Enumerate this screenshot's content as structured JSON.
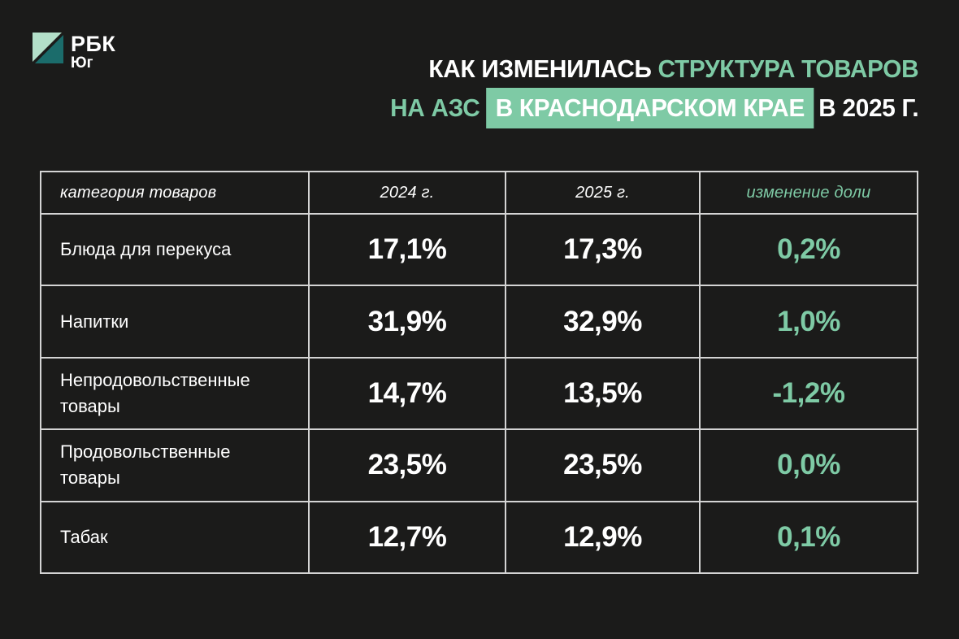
{
  "page": {
    "background": "#1b1b1a",
    "accent": "#7ecaa5",
    "border_color": "#d4d4d4"
  },
  "logo": {
    "brand": "РБК",
    "region": "Юг",
    "mark_light_color": "#b3dfc9",
    "mark_dark_color": "#1b6c6b"
  },
  "title": {
    "line1_white": "КАК ИЗМЕНИЛАСЬ",
    "line1_accent": "СТРУКТУРА ТОВАРОВ",
    "line2_accent": "НА АЗС",
    "line2_highlight": "В КРАСНОДАРСКОМ КРАЕ",
    "line2_white": "В 2025 Г."
  },
  "chart_data": {
    "type": "table",
    "title": "Как изменилась структура товаров на АЗС в Краснодарском крае в 2025 г.",
    "columns": [
      "категория товаров",
      "2024 г.",
      "2025 г.",
      "изменение доли"
    ],
    "categories": [
      "Блюда для перекуса",
      "Напитки",
      "Непродовольственные товары",
      "Продовольственные товары",
      "Табак"
    ],
    "rows": [
      {
        "category": "Блюда для перекуса",
        "y2024": "17,1%",
        "y2025": "17,3%",
        "change": "0,2%"
      },
      {
        "category": "Напитки",
        "y2024": "31,9%",
        "y2025": "32,9%",
        "change": "1,0%"
      },
      {
        "category": "Непродовольственные товары",
        "y2024": "14,7%",
        "y2025": "13,5%",
        "change": "-1,2%"
      },
      {
        "category": "Продовольственные товары",
        "y2024": "23,5%",
        "y2025": "23,5%",
        "change": "0,0%"
      },
      {
        "category": "Табак",
        "y2024": "12,7%",
        "y2025": "12,9%",
        "change": "0,1%"
      }
    ],
    "series": [
      {
        "name": "2024 г.",
        "values": [
          17.1,
          31.9,
          14.7,
          23.5,
          12.7
        ]
      },
      {
        "name": "2025 г.",
        "values": [
          17.3,
          32.9,
          13.5,
          23.5,
          12.9
        ]
      },
      {
        "name": "изменение доли",
        "values": [
          0.2,
          1.0,
          -1.2,
          0.0,
          0.1
        ]
      }
    ],
    "legend_position": "none",
    "grid": true
  }
}
